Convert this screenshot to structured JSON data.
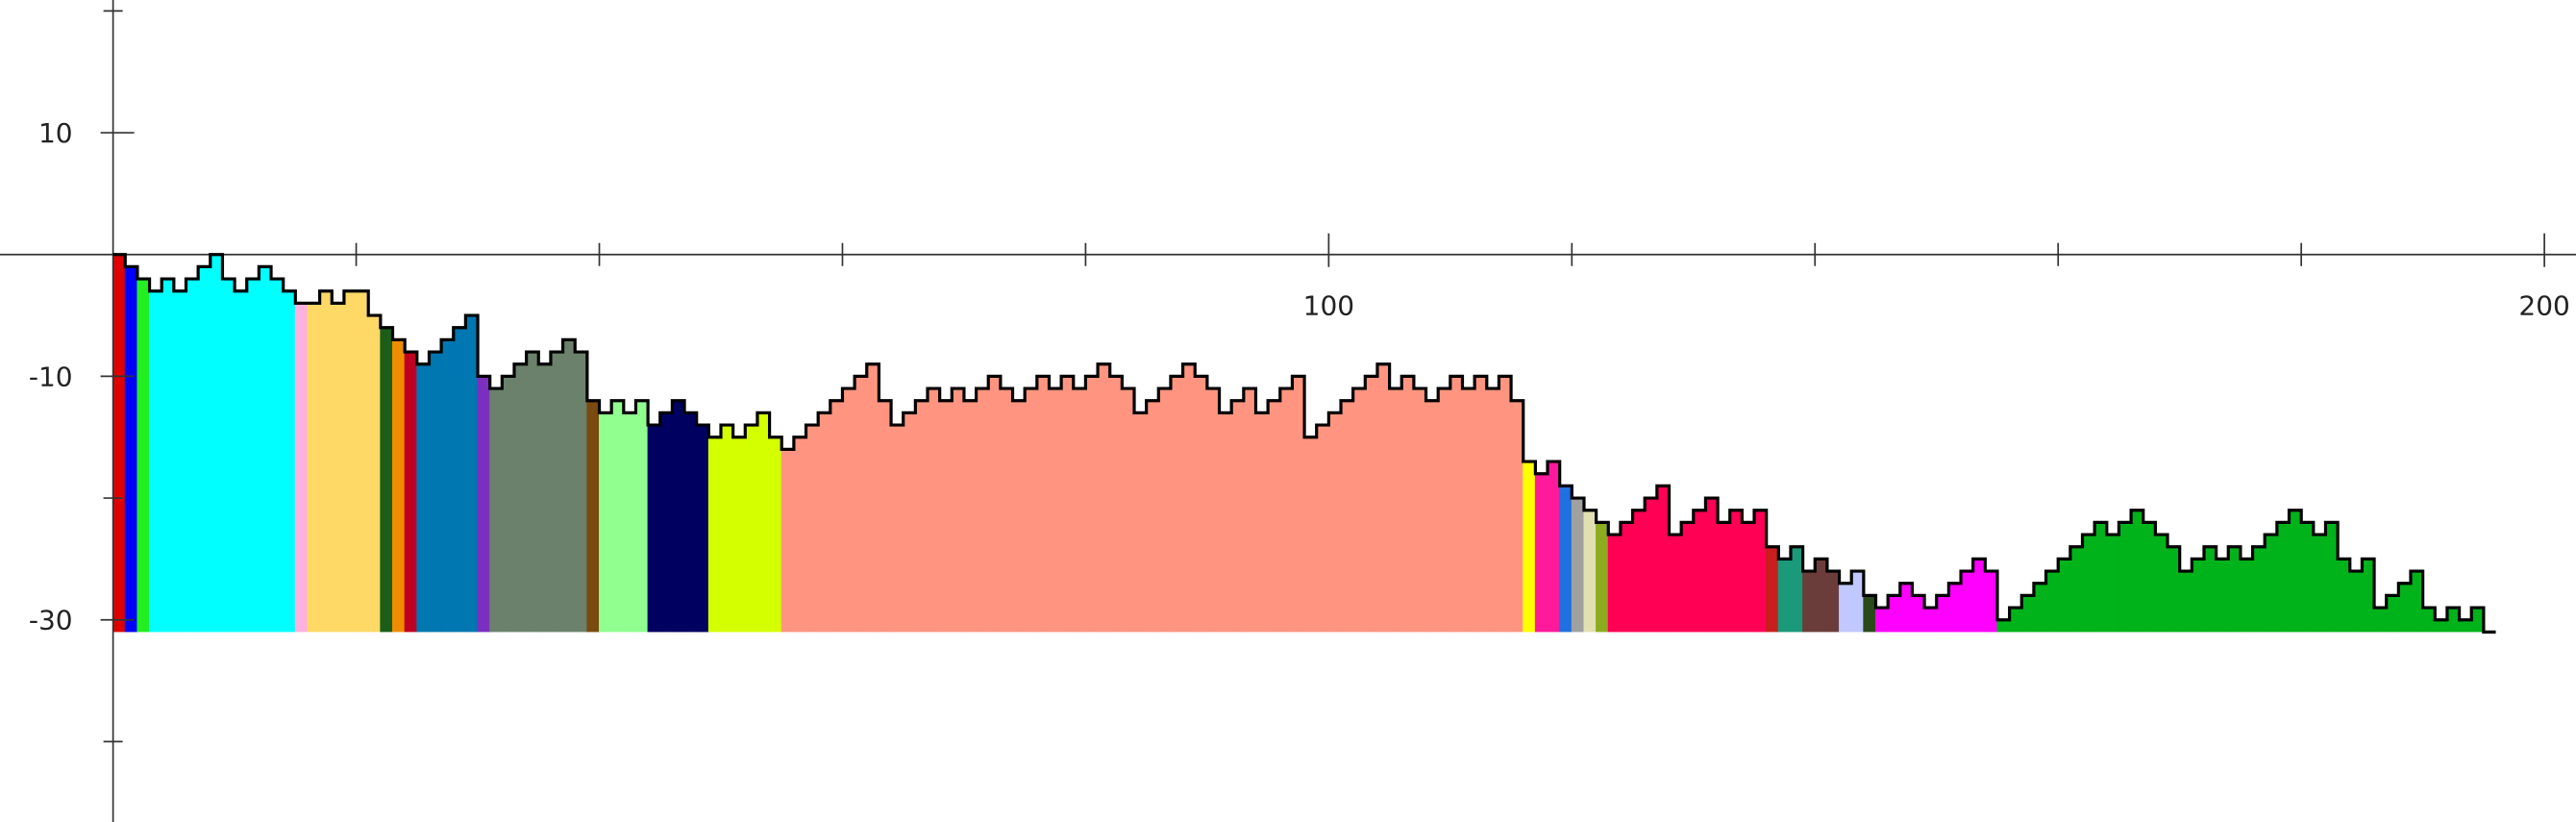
{
  "chart_data": {
    "type": "step-area",
    "xlim": [
      -9.3,
      202.6
    ],
    "ylim": [
      -46.6,
      20.9
    ],
    "xticks": [
      100,
      200
    ],
    "xminor": [
      20,
      40,
      60,
      80,
      120,
      140,
      160,
      180
    ],
    "yticks": [
      10,
      -10,
      -30
    ],
    "yminor": [
      20,
      -20,
      -40
    ],
    "baseline": -31,
    "step_width": 1,
    "line_color": "#000000",
    "series": [
      {
        "color": "#e00000",
        "x": [
          0
        ],
        "values": [
          0
        ]
      },
      {
        "color": "#0000ff",
        "x": [
          1
        ],
        "values": [
          -1
        ]
      },
      {
        "color": "#22ee22",
        "x": [
          2
        ],
        "values": [
          -2
        ]
      },
      {
        "color": "#00ffff",
        "x": [
          3,
          4,
          5,
          6,
          7,
          8,
          9,
          10,
          11,
          12,
          13,
          14
        ],
        "values": [
          -3,
          -2,
          -3,
          -2,
          -1,
          0,
          -2,
          -3,
          -2,
          -1,
          -2,
          -3
        ]
      },
      {
        "color": "#ffb0e0",
        "x": [
          15
        ],
        "values": [
          -4
        ]
      },
      {
        "color": "#ffd966",
        "x": [
          16,
          17,
          18,
          19,
          20,
          21
        ],
        "values": [
          -4,
          -3,
          -4,
          -3,
          -3,
          -5
        ]
      },
      {
        "color": "#1a5e1a",
        "x": [
          22
        ],
        "values": [
          -6
        ]
      },
      {
        "color": "#f08c00",
        "x": [
          23
        ],
        "values": [
          -7
        ]
      },
      {
        "color": "#c00020",
        "x": [
          24
        ],
        "values": [
          -8
        ]
      },
      {
        "color": "#0077b0",
        "x": [
          25,
          26,
          27,
          28,
          29
        ],
        "values": [
          -9,
          -8,
          -7,
          -6,
          -5
        ]
      },
      {
        "color": "#7b2fc0",
        "x": [
          30
        ],
        "values": [
          -10
        ]
      },
      {
        "color": "#6b816b",
        "x": [
          31,
          32,
          33,
          34,
          35,
          36,
          37,
          38
        ],
        "values": [
          -11,
          -10,
          -9,
          -8,
          -9,
          -8,
          -7,
          -8
        ]
      },
      {
        "color": "#7a4a10",
        "x": [
          39
        ],
        "values": [
          -12
        ]
      },
      {
        "color": "#90ff90",
        "x": [
          40,
          41,
          42,
          43
        ],
        "values": [
          -13,
          -12,
          -13,
          -12
        ]
      },
      {
        "color": "#000060",
        "x": [
          44,
          45,
          46,
          47,
          48
        ],
        "values": [
          -14,
          -13,
          -12,
          -13,
          -14
        ]
      },
      {
        "color": "#d4ff00",
        "x": [
          49,
          50,
          51,
          52,
          53,
          54
        ],
        "values": [
          -15,
          -14,
          -15,
          -14,
          -13,
          -15
        ]
      },
      {
        "color": "#ff9580",
        "x": [
          55,
          56,
          57,
          58,
          59,
          60,
          61,
          62,
          63,
          64,
          65,
          66,
          67,
          68,
          69,
          70,
          71,
          72,
          73,
          74,
          75,
          76,
          77,
          78,
          79,
          80,
          81,
          82,
          83,
          84,
          85,
          86,
          87,
          88,
          89,
          90,
          91,
          92,
          93,
          94,
          95,
          96,
          97,
          98,
          99,
          100,
          101,
          102,
          103,
          104,
          105,
          106,
          107,
          108,
          109,
          110,
          111,
          112,
          113,
          114,
          115
        ],
        "values": [
          -16,
          -15,
          -14,
          -13,
          -12,
          -11,
          -10,
          -9,
          -12,
          -14,
          -13,
          -12,
          -11,
          -12,
          -11,
          -12,
          -11,
          -10,
          -11,
          -12,
          -11,
          -10,
          -11,
          -10,
          -11,
          -10,
          -9,
          -10,
          -11,
          -13,
          -12,
          -11,
          -10,
          -9,
          -10,
          -11,
          -13,
          -12,
          -11,
          -13,
          -12,
          -11,
          -10,
          -15,
          -14,
          -13,
          -12,
          -11,
          -10,
          -9,
          -11,
          -10,
          -11,
          -12,
          -11,
          -10,
          -11,
          -10,
          -11,
          -10,
          -12
        ]
      },
      {
        "color": "#ffff00",
        "x": [
          116
        ],
        "values": [
          -17
        ]
      },
      {
        "color": "#ff1a9c",
        "x": [
          117,
          118
        ],
        "values": [
          -18,
          -17
        ]
      },
      {
        "color": "#1f70e0",
        "x": [
          119
        ],
        "values": [
          -19
        ]
      },
      {
        "color": "#a0a0a0",
        "x": [
          120
        ],
        "values": [
          -20
        ]
      },
      {
        "color": "#e0e0b0",
        "x": [
          121
        ],
        "values": [
          -21
        ]
      },
      {
        "color": "#8cab1e",
        "x": [
          122
        ],
        "values": [
          -22
        ]
      },
      {
        "color": "#ff0055",
        "x": [
          123,
          124,
          125,
          126,
          127,
          128,
          129,
          130,
          131,
          132,
          133,
          134,
          135
        ],
        "values": [
          -23,
          -22,
          -21,
          -20,
          -19,
          -23,
          -22,
          -21,
          -20,
          -22,
          -21,
          -22,
          -21
        ]
      },
      {
        "color": "#c81e1e",
        "x": [
          136
        ],
        "values": [
          -24
        ]
      },
      {
        "color": "#1a9a7a",
        "x": [
          137,
          138
        ],
        "values": [
          -25,
          -24
        ]
      },
      {
        "color": "#6b3d3a",
        "x": [
          139,
          140,
          141
        ],
        "values": [
          -26,
          -25,
          -26
        ]
      },
      {
        "color": "#c0c8ff",
        "x": [
          142,
          143
        ],
        "values": [
          -27,
          -26
        ]
      },
      {
        "color": "#2a4a1a",
        "x": [
          144
        ],
        "values": [
          -28
        ]
      },
      {
        "color": "#ff00ff",
        "x": [
          145,
          146,
          147,
          148,
          149,
          150,
          151,
          152,
          153,
          154
        ],
        "values": [
          -29,
          -28,
          -27,
          -28,
          -29,
          -28,
          -27,
          -26,
          -25,
          -26
        ]
      },
      {
        "color": "#00b31a",
        "x": [
          155,
          156,
          157,
          158,
          159,
          160,
          161,
          162,
          163,
          164,
          165,
          166,
          167,
          168,
          169,
          170,
          171,
          172,
          173,
          174,
          175,
          176,
          177,
          178,
          179,
          180,
          181,
          182,
          183,
          184,
          185,
          186,
          187,
          188,
          189,
          190,
          191,
          192,
          193,
          194,
          195
        ],
        "values": [
          -30,
          -29,
          -28,
          -27,
          -26,
          -25,
          -24,
          -23,
          -22,
          -23,
          -22,
          -21,
          -22,
          -23,
          -24,
          -26,
          -25,
          -24,
          -25,
          -24,
          -25,
          -24,
          -23,
          -22,
          -21,
          -22,
          -23,
          -22,
          -25,
          -26,
          -25,
          -29,
          -28,
          -27,
          -26,
          -29,
          -30,
          -29,
          -30,
          -29,
          -31
        ]
      }
    ]
  }
}
